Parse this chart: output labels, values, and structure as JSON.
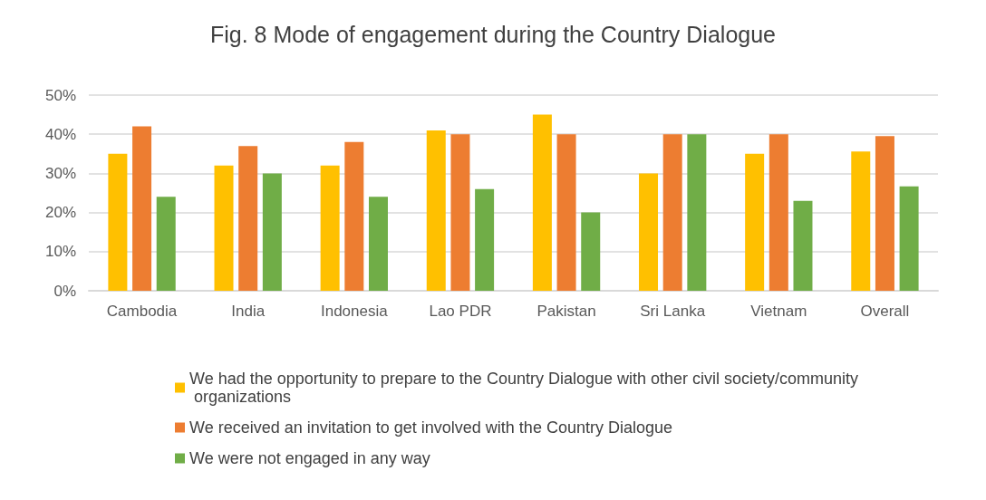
{
  "chart_data": {
    "type": "bar",
    "title": "Fig. 8 Mode of engagement during the Country Dialogue",
    "categories": [
      "Cambodia",
      "India",
      "Indonesia",
      "Lao PDR",
      "Pakistan",
      "Sri Lanka",
      "Vietnam",
      "Overall"
    ],
    "series": [
      {
        "name": "We had the opportunity to prepare to the Country Dialogue with other civil society/community organizations",
        "color": "#ffc000",
        "values": [
          35,
          32,
          32,
          41,
          45,
          30,
          35,
          35.6
        ]
      },
      {
        "name": "We received an invitation to get involved with the Country Dialogue",
        "color": "#ed7d31",
        "values": [
          42,
          37,
          38,
          40,
          40,
          40,
          40,
          39.5
        ]
      },
      {
        "name": "We were not engaged in any way",
        "color": "#70ad47",
        "values": [
          24,
          30,
          24,
          26,
          20,
          40,
          23,
          26.7
        ]
      }
    ],
    "ylim": [
      0,
      50
    ],
    "yticks": [
      {
        "value": 0,
        "label": "0%"
      },
      {
        "value": 10,
        "label": "10%"
      },
      {
        "value": 20,
        "label": "20%"
      },
      {
        "value": 30,
        "label": "30%"
      },
      {
        "value": 40,
        "label": "40%"
      },
      {
        "value": 50,
        "label": "50%"
      }
    ],
    "grid": "y",
    "legend": "bottom"
  }
}
